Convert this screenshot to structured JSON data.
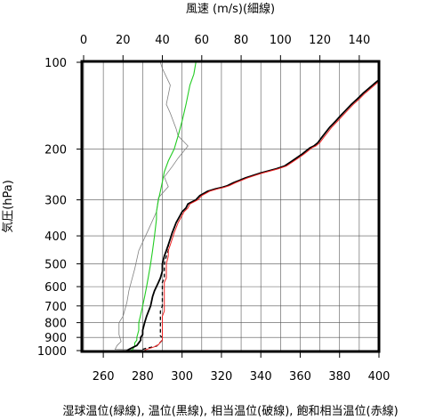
{
  "chart_data": {
    "type": "line",
    "top_axis": {
      "label": "風速 (m/s)(細線)",
      "range": [
        0,
        150
      ],
      "ticks": [
        0,
        20,
        40,
        60,
        80,
        100,
        120,
        140
      ]
    },
    "bottom_axis": {
      "label": "湿球温位(緑線), 温位(黒線), 相当温位(破線), 飽和相当温位(赤線)",
      "range": [
        250,
        400
      ],
      "ticks": [
        260,
        280,
        300,
        320,
        340,
        360,
        380,
        400
      ]
    },
    "y_axis": {
      "label": "気圧(hPa)",
      "scale": "log",
      "inverted": true,
      "range": [
        1000,
        100
      ],
      "ticks": [
        100,
        200,
        300,
        400,
        500,
        600,
        700,
        800,
        900,
        1000
      ]
    },
    "grid": true,
    "series": [
      {
        "name": "風速",
        "axis": "top",
        "color": "#808080",
        "points": [
          [
            30,
            995
          ],
          [
            16,
            990
          ],
          [
            17,
            960
          ],
          [
            19,
            930
          ],
          [
            18,
            880
          ],
          [
            18,
            800
          ],
          [
            20,
            760
          ],
          [
            22,
            680
          ],
          [
            23,
            620
          ],
          [
            26,
            520
          ],
          [
            28,
            450
          ],
          [
            33,
            380
          ],
          [
            37,
            330
          ],
          [
            38,
            295
          ],
          [
            43,
            270
          ],
          [
            41,
            250
          ],
          [
            45,
            230
          ],
          [
            48,
            215
          ],
          [
            53,
            195
          ],
          [
            48,
            180
          ],
          [
            47,
            170
          ],
          [
            44,
            150
          ],
          [
            42,
            140
          ],
          [
            44,
            120
          ],
          [
            40,
            105
          ],
          [
            39,
            100
          ]
        ]
      },
      {
        "name": "湿球温位",
        "axis": "bottom",
        "color": "#22cc22",
        "points": [
          [
            274,
            1000
          ],
          [
            275,
            990
          ],
          [
            276,
            960
          ],
          [
            276,
            940
          ],
          [
            277,
            920
          ],
          [
            277,
            900
          ],
          [
            278,
            850
          ],
          [
            278,
            800
          ],
          [
            279,
            750
          ],
          [
            280,
            700
          ],
          [
            281,
            650
          ],
          [
            282,
            600
          ],
          [
            283,
            550
          ],
          [
            284,
            500
          ],
          [
            285,
            450
          ],
          [
            286,
            400
          ],
          [
            287,
            350
          ],
          [
            287,
            330
          ],
          [
            288,
            300
          ],
          [
            289,
            280
          ],
          [
            290,
            260
          ],
          [
            291,
            240
          ],
          [
            293,
            220
          ],
          [
            296,
            200
          ],
          [
            298,
            180
          ],
          [
            300,
            160
          ],
          [
            302,
            140
          ],
          [
            304,
            120
          ],
          [
            306,
            110
          ],
          [
            307,
            100
          ]
        ]
      },
      {
        "name": "温位",
        "axis": "bottom",
        "color": "#000000",
        "points": [
          [
            272,
            1000
          ],
          [
            273,
            990
          ],
          [
            275,
            975
          ],
          [
            277,
            960
          ],
          [
            278,
            940
          ],
          [
            279,
            920
          ],
          [
            279,
            900
          ],
          [
            280,
            880
          ],
          [
            280,
            850
          ],
          [
            281,
            800
          ],
          [
            282,
            760
          ],
          [
            283,
            730
          ],
          [
            284,
            700
          ],
          [
            285,
            650
          ],
          [
            286,
            620
          ],
          [
            287,
            600
          ],
          [
            288,
            580
          ],
          [
            289,
            560
          ],
          [
            290,
            530
          ],
          [
            290,
            500
          ],
          [
            291,
            470
          ],
          [
            292,
            450
          ],
          [
            293,
            430
          ],
          [
            294,
            410
          ],
          [
            295,
            390
          ],
          [
            296,
            375
          ],
          [
            297,
            360
          ],
          [
            299,
            340
          ],
          [
            300,
            330
          ],
          [
            302,
            320
          ],
          [
            303,
            310
          ],
          [
            305,
            305
          ],
          [
            307,
            300
          ],
          [
            309,
            290
          ],
          [
            311,
            285
          ],
          [
            313,
            280
          ],
          [
            317,
            275
          ],
          [
            320,
            272
          ],
          [
            323,
            268
          ],
          [
            326,
            262
          ],
          [
            329,
            257
          ],
          [
            332,
            252
          ],
          [
            336,
            247
          ],
          [
            340,
            242
          ],
          [
            344,
            238
          ],
          [
            348,
            234
          ],
          [
            352,
            229
          ],
          [
            355,
            222
          ],
          [
            358,
            215
          ],
          [
            361,
            208
          ],
          [
            363,
            203
          ],
          [
            365,
            198
          ],
          [
            367,
            195
          ],
          [
            369,
            190
          ],
          [
            371,
            182
          ],
          [
            373,
            175
          ],
          [
            375,
            168
          ],
          [
            378,
            160
          ],
          [
            381,
            152
          ],
          [
            383,
            147
          ],
          [
            386,
            140
          ],
          [
            389,
            134
          ],
          [
            392,
            128
          ],
          [
            395,
            123
          ],
          [
            398,
            118
          ],
          [
            400,
            115
          ]
        ]
      },
      {
        "name": "相当温位",
        "axis": "bottom",
        "color": "#000000",
        "dashed": true,
        "points": [
          [
            280,
            990
          ],
          [
            282,
            980
          ],
          [
            284,
            975
          ],
          [
            287,
            965
          ],
          [
            288,
            950
          ],
          [
            290,
            920
          ],
          [
            290,
            900
          ],
          [
            289,
            890
          ],
          [
            289,
            850
          ],
          [
            289,
            800
          ],
          [
            289,
            760
          ],
          [
            289,
            730
          ],
          [
            290,
            700
          ],
          [
            290,
            650
          ],
          [
            290,
            620
          ],
          [
            290,
            600
          ],
          [
            290,
            580
          ],
          [
            291,
            560
          ],
          [
            291,
            530
          ],
          [
            291,
            500
          ],
          [
            292,
            470
          ],
          [
            293,
            450
          ],
          [
            293,
            430
          ],
          [
            294,
            410
          ],
          [
            295,
            390
          ],
          [
            296,
            375
          ],
          [
            297,
            360
          ],
          [
            299,
            340
          ],
          [
            300,
            330
          ],
          [
            302,
            320
          ],
          [
            303,
            310
          ],
          [
            305,
            305
          ],
          [
            307,
            300
          ],
          [
            309,
            290
          ],
          [
            311,
            285
          ],
          [
            313,
            280
          ],
          [
            317,
            275
          ],
          [
            320,
            272
          ],
          [
            323,
            268
          ],
          [
            326,
            262
          ],
          [
            329,
            257
          ],
          [
            332,
            252
          ],
          [
            336,
            247
          ],
          [
            340,
            242
          ],
          [
            344,
            238
          ],
          [
            348,
            234
          ],
          [
            352,
            229
          ],
          [
            355,
            222
          ],
          [
            358,
            215
          ],
          [
            361,
            208
          ],
          [
            363,
            203
          ],
          [
            365,
            198
          ],
          [
            367,
            195
          ],
          [
            369,
            190
          ],
          [
            371,
            182
          ],
          [
            373,
            175
          ],
          [
            375,
            168
          ],
          [
            378,
            160
          ],
          [
            381,
            152
          ],
          [
            383,
            147
          ],
          [
            386,
            140
          ],
          [
            389,
            134
          ],
          [
            392,
            128
          ],
          [
            395,
            123
          ],
          [
            398,
            118
          ],
          [
            400,
            115
          ]
        ]
      },
      {
        "name": "飽和相当温位",
        "axis": "bottom",
        "color": "#ee2222",
        "points": [
          [
            281,
            995
          ],
          [
            284,
            980
          ],
          [
            286,
            970
          ],
          [
            288,
            955
          ],
          [
            289,
            935
          ],
          [
            290,
            920
          ],
          [
            290,
            900
          ],
          [
            290,
            880
          ],
          [
            290,
            850
          ],
          [
            290,
            800
          ],
          [
            290,
            760
          ],
          [
            291,
            730
          ],
          [
            291,
            700
          ],
          [
            291,
            650
          ],
          [
            291,
            620
          ],
          [
            291,
            600
          ],
          [
            291,
            580
          ],
          [
            292,
            560
          ],
          [
            292,
            530
          ],
          [
            292,
            500
          ],
          [
            293,
            470
          ],
          [
            293,
            450
          ],
          [
            294,
            430
          ],
          [
            295,
            410
          ],
          [
            296,
            390
          ],
          [
            297,
            375
          ],
          [
            298,
            360
          ],
          [
            300,
            340
          ],
          [
            301,
            330
          ],
          [
            303,
            320
          ],
          [
            304,
            310
          ],
          [
            306,
            305
          ],
          [
            308,
            300
          ],
          [
            310,
            290
          ],
          [
            312,
            285
          ],
          [
            314,
            280
          ],
          [
            318,
            275
          ],
          [
            321,
            272
          ],
          [
            324,
            268
          ],
          [
            327,
            262
          ],
          [
            330,
            257
          ],
          [
            333,
            252
          ],
          [
            337,
            247
          ],
          [
            341,
            242
          ],
          [
            345,
            238
          ],
          [
            349,
            234
          ],
          [
            353,
            229
          ],
          [
            356,
            222
          ],
          [
            359,
            215
          ],
          [
            362,
            208
          ],
          [
            364,
            203
          ],
          [
            366,
            198
          ],
          [
            368,
            195
          ],
          [
            370,
            190
          ],
          [
            372,
            182
          ],
          [
            374,
            175
          ],
          [
            376,
            168
          ],
          [
            379,
            160
          ],
          [
            382,
            152
          ],
          [
            384,
            147
          ],
          [
            387,
            140
          ],
          [
            390,
            134
          ],
          [
            393,
            128
          ],
          [
            396,
            123
          ],
          [
            399,
            118
          ],
          [
            400,
            116
          ]
        ]
      }
    ]
  }
}
